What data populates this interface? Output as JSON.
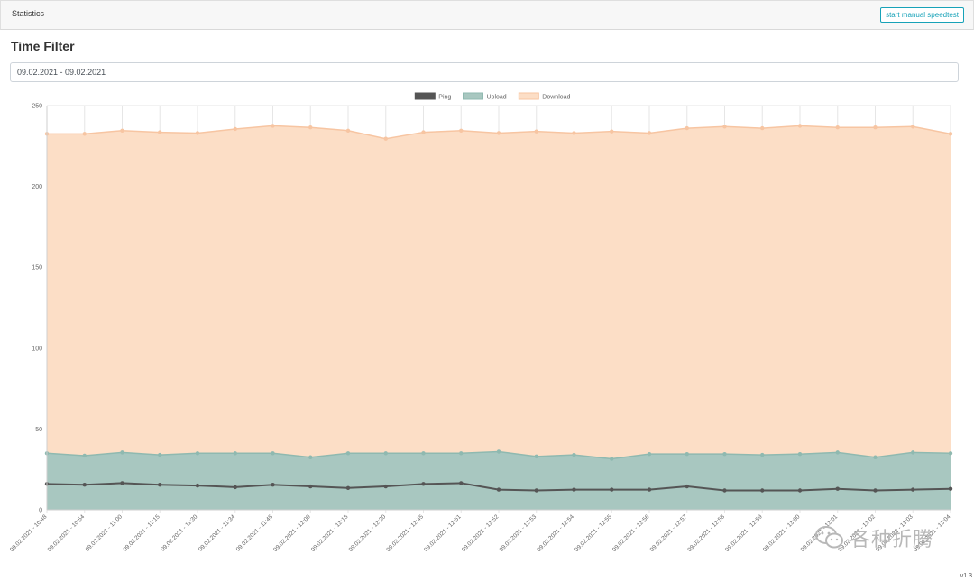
{
  "header": {
    "title": "Statistics",
    "speedtest_label": "start manual speedtest"
  },
  "filter": {
    "heading": "Time Filter",
    "date_range": "09.02.2021 - 09.02.2021"
  },
  "footer": {
    "version": "v1.3"
  },
  "watermark": {
    "text": "各种折腾"
  },
  "chart_data": {
    "type": "area",
    "categories": [
      "09.02.2021 - 10:48",
      "09.02.2021 - 10:54",
      "09.02.2021 - 11:00",
      "09.02.2021 - 11:15",
      "09.02.2021 - 11:30",
      "09.02.2021 - 11:34",
      "09.02.2021 - 11:45",
      "09.02.2021 - 12:00",
      "09.02.2021 - 12:15",
      "09.02.2021 - 12:30",
      "09.02.2021 - 12:45",
      "09.02.2021 - 12:51",
      "09.02.2021 - 12:52",
      "09.02.2021 - 12:53",
      "09.02.2021 - 12:54",
      "09.02.2021 - 12:55",
      "09.02.2021 - 12:56",
      "09.02.2021 - 12:57",
      "09.02.2021 - 12:58",
      "09.02.2021 - 12:59",
      "09.02.2021 - 13:00",
      "09.02.2021 - 13:01",
      "09.02.2021 - 13:02",
      "09.02.2021 - 13:03",
      "09.02.2021 - 13:04"
    ],
    "series": [
      {
        "name": "Ping",
        "type": "line",
        "stroke": "#555555",
        "fill": "#555555",
        "values": [
          16,
          15.5,
          16.5,
          15.5,
          15,
          14,
          15.5,
          14.5,
          13.5,
          14.5,
          16,
          16.5,
          12.5,
          12,
          12.5,
          12.5,
          12.5,
          14.5,
          12,
          12,
          12,
          13,
          12,
          12.5,
          13
        ]
      },
      {
        "name": "Upload",
        "type": "area",
        "stroke": "#8fb9b0",
        "fill": "#a8c7c0",
        "values": [
          35,
          33.5,
          35.5,
          34,
          35,
          35,
          35,
          32.5,
          35,
          35,
          35,
          35,
          36,
          33,
          34,
          31.5,
          34.5,
          34.5,
          34.5,
          34,
          34.5,
          35.5,
          32.5,
          35.5,
          35
        ]
      },
      {
        "name": "Download",
        "type": "area",
        "stroke": "#f7c5a2",
        "fill": "#fcdec6",
        "values": [
          232.5,
          232.5,
          234.5,
          233.5,
          233,
          235.5,
          237.5,
          236.5,
          234.5,
          229.5,
          233.5,
          234.5,
          233,
          234,
          233,
          234,
          233,
          236,
          237,
          236,
          237.5,
          236.5,
          236.5,
          237,
          232.5
        ]
      }
    ],
    "ylim": [
      0,
      250
    ],
    "yticks": [
      0,
      50,
      100,
      150,
      200,
      250
    ],
    "legend": "top",
    "grid": true
  }
}
